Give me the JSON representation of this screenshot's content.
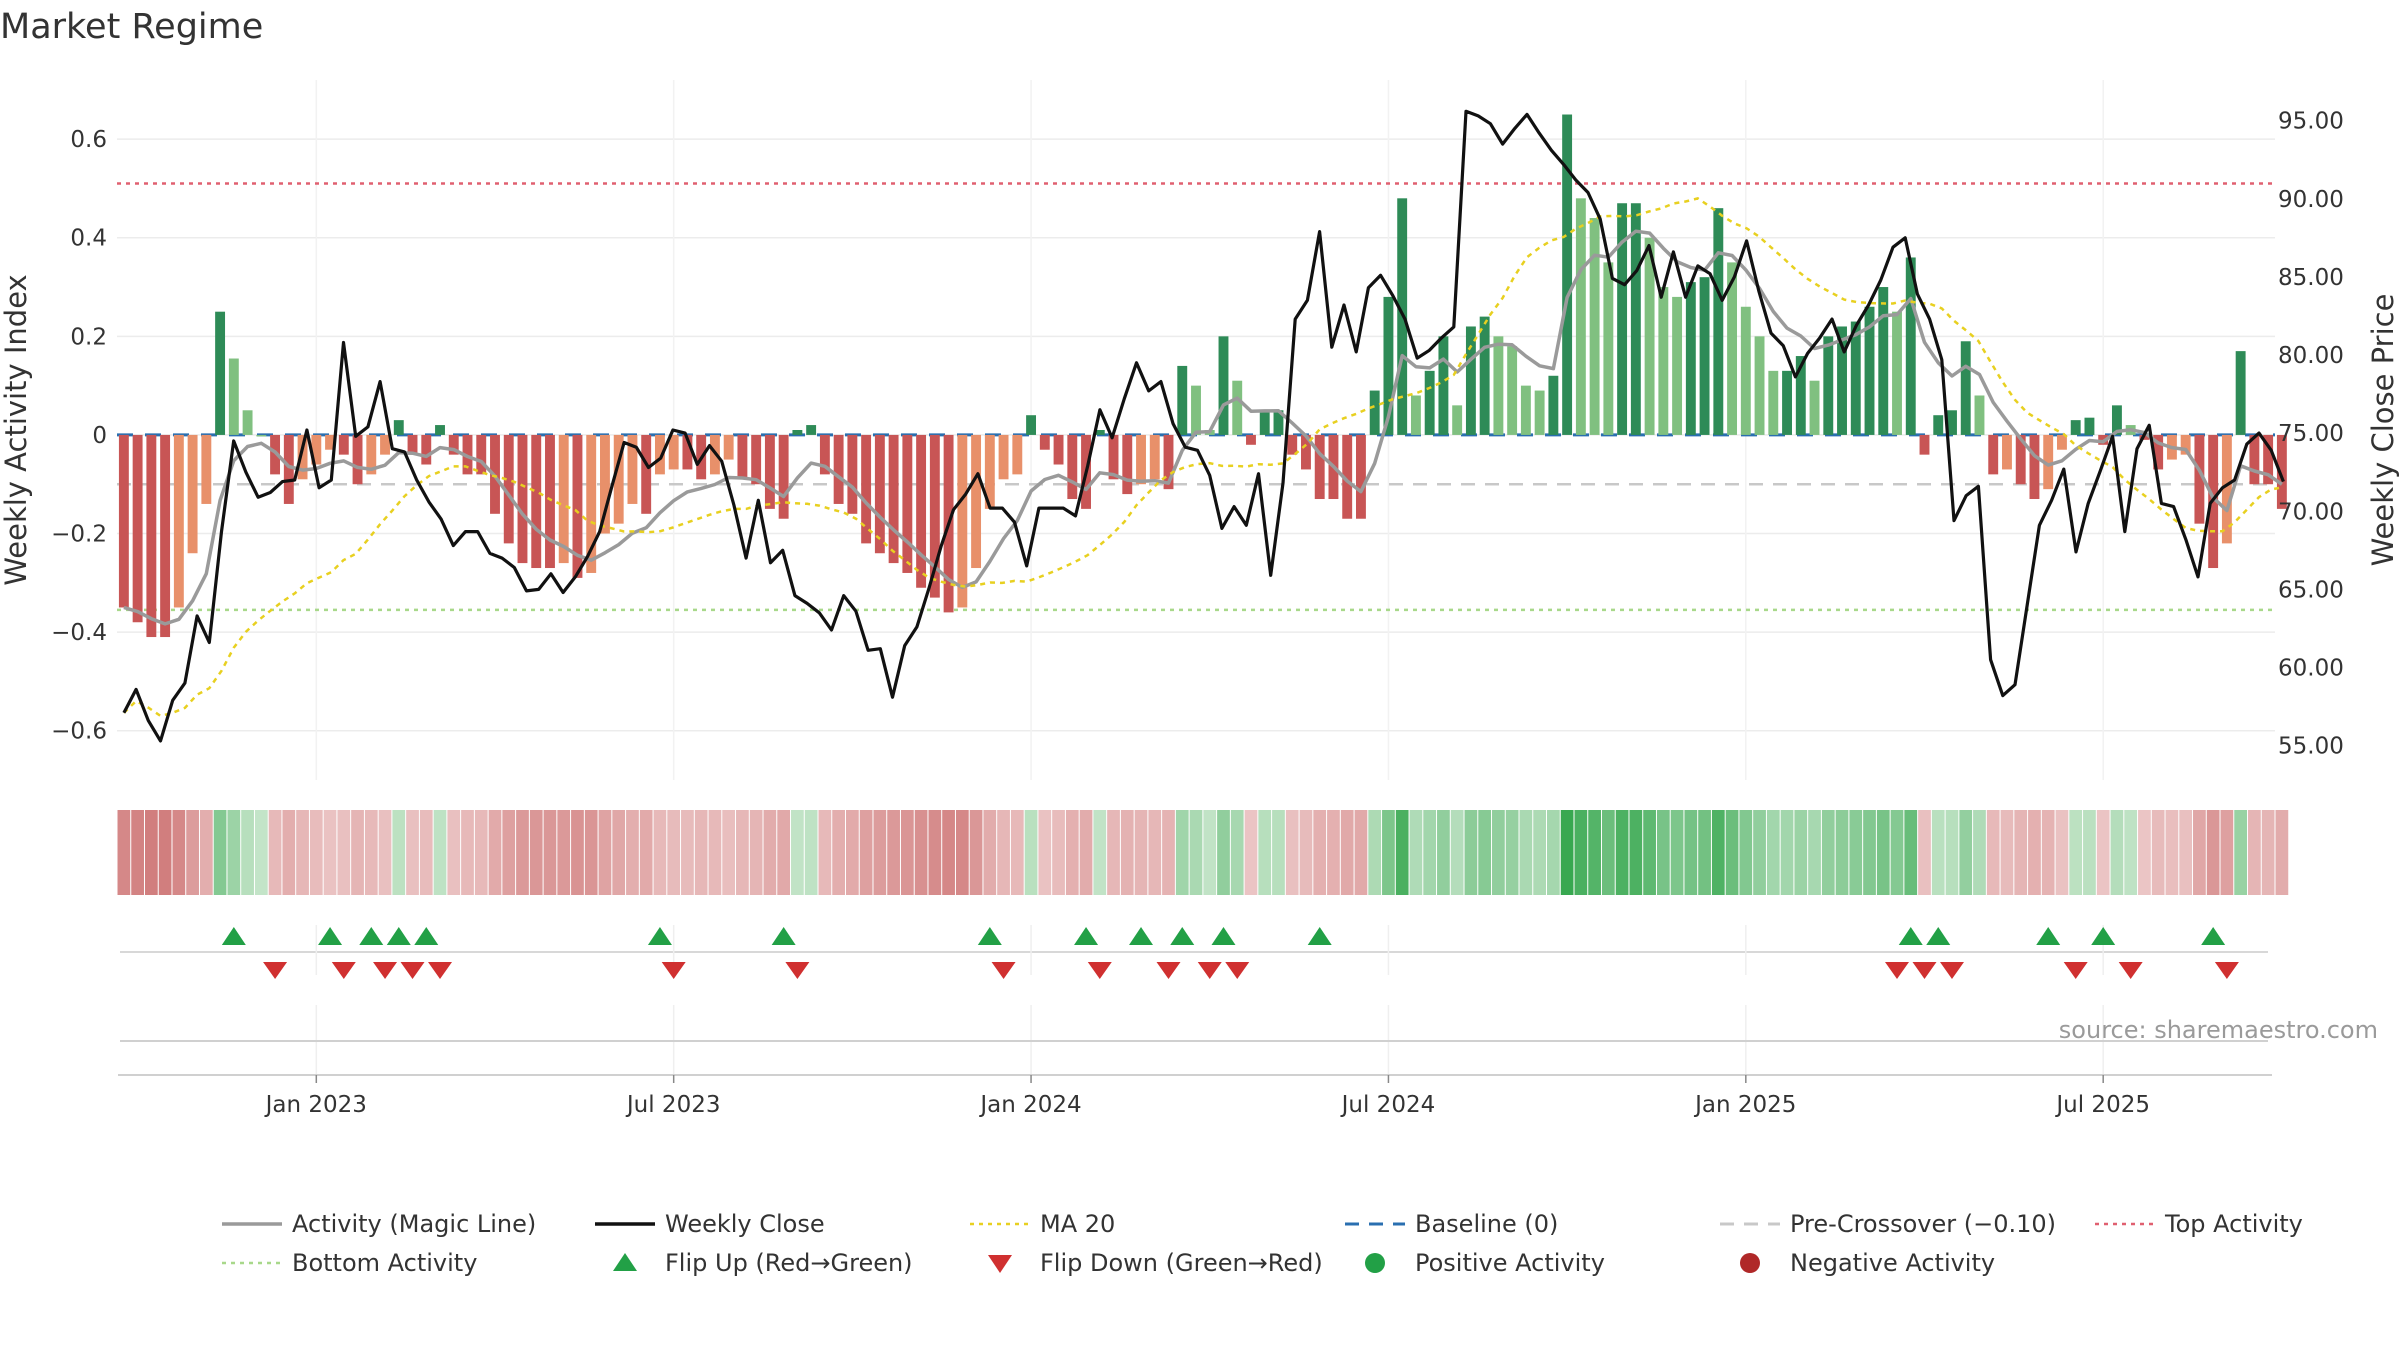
{
  "title": "Market Regime",
  "source_text": "source: sharemaestro.com",
  "colors": {
    "strong_green": "#2e8b57",
    "light_green": "#80c080",
    "strong_red": "#c85555",
    "light_red": "#e8906a",
    "magic_line": "#9a9a9a",
    "close_line": "#111111",
    "ma20": "#e8d020",
    "baseline": "#2a6fb0",
    "pre_cross": "#c8c8c8",
    "top_activity": "#e06070",
    "bottom_activity": "#a8d88a",
    "flip_up": "#22a046",
    "flip_down": "#d03030",
    "positive_dot": "#22a046",
    "negative_dot": "#b02828"
  },
  "chart_data": {
    "type": "bar",
    "title": "Market Regime",
    "ylabel_left": "Weekly Activity Index",
    "ylabel_right": "Weekly Close Price",
    "ylim_left": [
      -0.7,
      0.72
    ],
    "ylim_right": [
      52.8,
      97.6
    ],
    "left_ticks": [
      "0.6",
      "0.4",
      "0.2",
      "0",
      "−0.2",
      "−0.4",
      "−0.6"
    ],
    "left_tick_values": [
      0.6,
      0.4,
      0.2,
      0,
      -0.2,
      -0.4,
      -0.6
    ],
    "right_ticks": [
      "95.00",
      "90.00",
      "85.00",
      "80.00",
      "75.00",
      "70.00",
      "65.00",
      "60.00",
      "55.00"
    ],
    "right_tick_values": [
      95,
      90,
      85,
      80,
      75,
      70,
      65,
      60,
      55
    ],
    "x_ticks": [
      "Jan 2023",
      "Jul 2023",
      "Jan 2024",
      "Jul 2024",
      "Jan 2025",
      "Jul 2025"
    ],
    "x_tick_week_index": [
      14.5,
      40.5,
      66.5,
      92.5,
      118.5,
      144.5
    ],
    "x_range_weeks": [
      0,
      157
    ],
    "reference_lines": {
      "baseline": 0,
      "pre_crossover": -0.1,
      "top_activity": 0.51,
      "bottom_activity": -0.355
    },
    "activity_index": [
      -0.35,
      -0.38,
      -0.41,
      -0.41,
      -0.35,
      -0.24,
      -0.14,
      0.25,
      0.155,
      0.05,
      0,
      -0.08,
      -0.14,
      -0.09,
      -0.06,
      -0.03,
      -0.04,
      -0.1,
      -0.08,
      -0.04,
      0.03,
      -0.04,
      -0.06,
      0.02,
      -0.04,
      -0.08,
      -0.08,
      -0.16,
      -0.22,
      -0.26,
      -0.27,
      -0.27,
      -0.26,
      -0.29,
      -0.28,
      -0.2,
      -0.18,
      -0.14,
      -0.16,
      -0.08,
      -0.07,
      -0.07,
      -0.09,
      -0.08,
      -0.05,
      -0.09,
      -0.1,
      -0.15,
      -0.17,
      0.01,
      0.02,
      -0.08,
      -0.14,
      -0.16,
      -0.22,
      -0.24,
      -0.26,
      -0.28,
      -0.31,
      -0.33,
      -0.36,
      -0.35,
      -0.27,
      -0.15,
      -0.09,
      -0.08,
      0.04,
      -0.03,
      -0.06,
      -0.13,
      -0.15,
      0.01,
      -0.09,
      -0.12,
      -0.1,
      -0.09,
      -0.11,
      0.14,
      0.1,
      0.01,
      0.2,
      0.11,
      -0.02,
      0.05,
      0.05,
      -0.04,
      -0.07,
      -0.13,
      -0.13,
      -0.17,
      -0.17,
      0.09,
      0.28,
      0.48,
      0.08,
      0.13,
      0.2,
      0.06,
      0.22,
      0.24,
      0.2,
      0.18,
      0.1,
      0.09,
      0.12,
      0.65,
      0.48,
      0.44,
      0.35,
      0.47,
      0.47,
      0.4,
      0.3,
      0.28,
      0.31,
      0.32,
      0.46,
      0.35,
      0.26,
      0.2,
      0.13,
      0.13,
      0.16,
      0.11,
      0.2,
      0.22,
      0.23,
      0.26,
      0.3,
      0.25,
      0.36,
      -0.04,
      0.04,
      0.05,
      0.19,
      0.08,
      -0.08,
      -0.07,
      -0.1,
      -0.13,
      -0.11,
      -0.03,
      0.03,
      0.035,
      -0.02,
      0.06,
      0.02,
      -0.01,
      -0.07,
      -0.05,
      -0.04,
      -0.18,
      -0.27,
      -0.22,
      0.17,
      -0.1,
      -0.1,
      -0.15
    ],
    "weekly_close": [
      57.1,
      58.6,
      56.6,
      55.3,
      57.9,
      59.0,
      63.3,
      61.6,
      68.7,
      74.5,
      72.5,
      70.9,
      71.2,
      71.9,
      72.0,
      75.2,
      71.5,
      72.0,
      80.8,
      74.8,
      75.4,
      78.3,
      74.0,
      73.8,
      72.0,
      70.6,
      69.5,
      67.8,
      68.7,
      68.7,
      67.3,
      67.0,
      66.4,
      64.9,
      65.0,
      66.0,
      64.8,
      65.8,
      67.1,
      68.7,
      71.6,
      74.4,
      74.1,
      72.8,
      73.4,
      75.2,
      75.0,
      73.0,
      74.2,
      73.2,
      70.4,
      67.0,
      70.7,
      66.7,
      67.5,
      64.6,
      64.1,
      63.5,
      62.4,
      64.6,
      63.6,
      61.1,
      61.2,
      58.1,
      61.4,
      62.6,
      65.1,
      67.8,
      70.1,
      71.1,
      72.4,
      70.2,
      70.2,
      69.3,
      66.5,
      70.2,
      70.2,
      70.2,
      69.7,
      72.9,
      76.5,
      74.7,
      77.2,
      79.5,
      77.7,
      78.3,
      75.6,
      74.1,
      73.9,
      72.3,
      68.9,
      70.3,
      69.1,
      72.4,
      65.9,
      71.8,
      82.3,
      83.5,
      87.9,
      80.5,
      83.2,
      80.2,
      84.3,
      85.1,
      83.8,
      82.3,
      79.8,
      80.3,
      81.1,
      81.8,
      95.6,
      95.3,
      94.8,
      93.5,
      94.5,
      95.4,
      94.2,
      93.1,
      92.2,
      91.2,
      90.4,
      88.7,
      84.9,
      84.5,
      85.4,
      87.0,
      83.7,
      86.6,
      83.7,
      85.7,
      85.2,
      83.5,
      85.0,
      87.3,
      84.1,
      81.4,
      80.6,
      78.6,
      80.1,
      81.1,
      82.3,
      80.2,
      81.9,
      83.2,
      84.8,
      86.9,
      87.5,
      83.9,
      82.3,
      79.7,
      69.4,
      71.0,
      71.6,
      60.5,
      58.2,
      58.9,
      64.0,
      69.1,
      70.7,
      72.7,
      67.4,
      70.5,
      72.6,
      74.8,
      68.7,
      74.0,
      75.5,
      70.5,
      70.3,
      68.2,
      65.8,
      70.5,
      71.5,
      72.0,
      74.3,
      75.0,
      73.9,
      71.9
    ],
    "pre_crossover_level": -0.1,
    "flip_up_weeks": [
      8,
      15,
      18,
      20,
      22,
      39,
      48,
      63,
      70,
      74,
      77,
      80,
      87,
      130,
      132,
      140,
      144,
      152
    ],
    "flip_down_weeks": [
      11,
      16,
      19,
      21,
      23,
      40,
      49,
      64,
      71,
      76,
      79,
      81,
      129,
      131,
      133,
      142,
      146,
      153
    ]
  },
  "legend": [
    {
      "label": "Activity (Magic Line)",
      "kind": "line",
      "color": "#9a9a9a"
    },
    {
      "label": "Weekly Close",
      "kind": "line",
      "color": "#111111"
    },
    {
      "label": "MA 20",
      "kind": "dotted",
      "color": "#e8d020"
    },
    {
      "label": "Baseline (0)",
      "kind": "dashed",
      "color": "#2a6fb0"
    },
    {
      "label": "Pre-Crossover (−0.10)",
      "kind": "dashed",
      "color": "#c8c8c8"
    },
    {
      "label": "Top Activity",
      "kind": "dotted",
      "color": "#e06070"
    },
    {
      "label": "Bottom Activity",
      "kind": "dotted",
      "color": "#a8d88a"
    },
    {
      "label": "Flip Up (Red→Green)",
      "kind": "triangle-up",
      "color": "#22a046"
    },
    {
      "label": "Flip Down (Green→Red)",
      "kind": "triangle-down",
      "color": "#d03030"
    },
    {
      "label": "Positive Activity",
      "kind": "dot",
      "color": "#22a046"
    },
    {
      "label": "Negative Activity",
      "kind": "dot",
      "color": "#b02828"
    }
  ]
}
